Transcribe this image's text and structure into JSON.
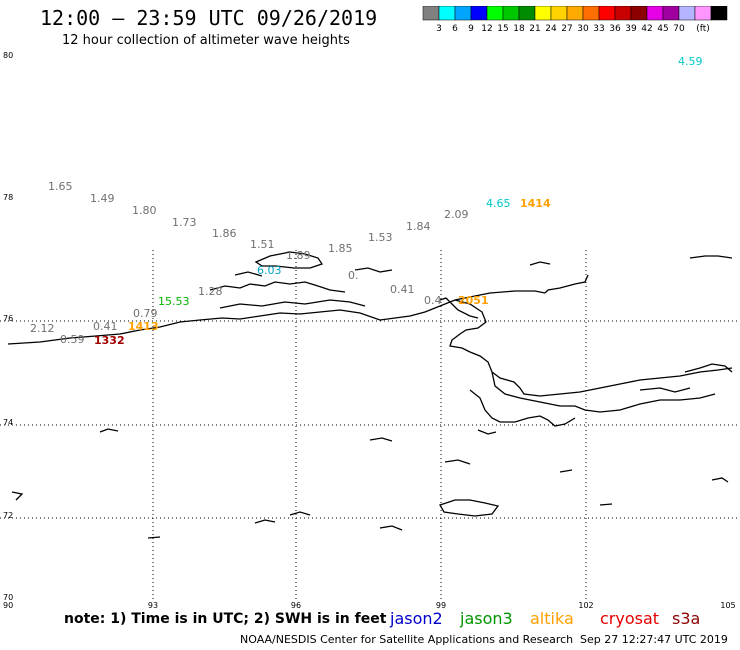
{
  "header": {
    "title": "12:00 – 23:59 UTC 09/26/2019",
    "subtitle": "12 hour collection of altimeter wave heights"
  },
  "colorbar": {
    "unit": "(ft)",
    "colors": [
      "#808080",
      "#00ffff",
      "#00a5ff",
      "#0000ff",
      "#00ff00",
      "#00c800",
      "#008c00",
      "#ffff00",
      "#ffd200",
      "#ffaa00",
      "#ff6e00",
      "#ff0000",
      "#c80000",
      "#8c0000",
      "#e600e6",
      "#a000a0",
      "#b4b4ff",
      "#ff96ff",
      "#000000"
    ],
    "ticks": [
      "3",
      "6",
      "9",
      "12",
      "15",
      "18",
      "21",
      "24",
      "27",
      "30",
      "33",
      "36",
      "39",
      "42",
      "45",
      "70"
    ]
  },
  "axes": {
    "lat_labels": [
      "80",
      "78",
      "76",
      "74",
      "72",
      "70"
    ],
    "lon_labels": [
      "90",
      "93",
      "96",
      "99",
      "102",
      "105"
    ]
  },
  "observations": [
    {
      "text": "4.59",
      "color": "#00c8c8"
    },
    {
      "text": "1.65",
      "color": "#707070"
    },
    {
      "text": "1.49",
      "color": "#707070"
    },
    {
      "text": "1.80",
      "color": "#707070"
    },
    {
      "text": "1.73",
      "color": "#707070"
    },
    {
      "text": "1.86",
      "color": "#707070"
    },
    {
      "text": "1.51",
      "color": "#707070"
    },
    {
      "text": "1.89",
      "color": "#707070"
    },
    {
      "text": "1.85",
      "color": "#707070"
    },
    {
      "text": "1.53",
      "color": "#707070"
    },
    {
      "text": "1.84",
      "color": "#707070"
    },
    {
      "text": "2.09",
      "color": "#707070"
    },
    {
      "text": "4.65",
      "color": "#00c8c8"
    },
    {
      "text": "1414",
      "color": "#ffa000"
    },
    {
      "text": "6.03",
      "color": "#00a0c8"
    },
    {
      "text": "1.28",
      "color": "#707070"
    },
    {
      "text": "0.",
      "color": "#707070"
    },
    {
      "text": "0.41",
      "color": "#707070"
    },
    {
      "text": "0.4",
      "color": "#707070"
    },
    {
      "text": "2051",
      "color": "#ffa000"
    },
    {
      "text": "15.53",
      "color": "#00b400"
    },
    {
      "text": "0.79",
      "color": "#707070"
    },
    {
      "text": "2.12",
      "color": "#707070"
    },
    {
      "text": "0.41",
      "color": "#707070"
    },
    {
      "text": "1413",
      "color": "#ffa000"
    },
    {
      "text": "0.59",
      "color": "#707070"
    },
    {
      "text": "1332",
      "color": "#a00000"
    }
  ],
  "footer": {
    "note": "note:  1) Time is in UTC;  2) SWH is in feet",
    "satellites": [
      {
        "name": "jason2",
        "color": "#0000cc"
      },
      {
        "name": "jason3",
        "color": "#009600"
      },
      {
        "name": "altika",
        "color": "#ffa000"
      },
      {
        "name": "cryosat",
        "color": "#e60000"
      },
      {
        "name": "s3a",
        "color": "#8c0000"
      }
    ],
    "credit": "NOAA/NESDIS Center for Satellite Applications and Research",
    "timestamp": "Sep 27 12:27:47 UTC 2019"
  }
}
